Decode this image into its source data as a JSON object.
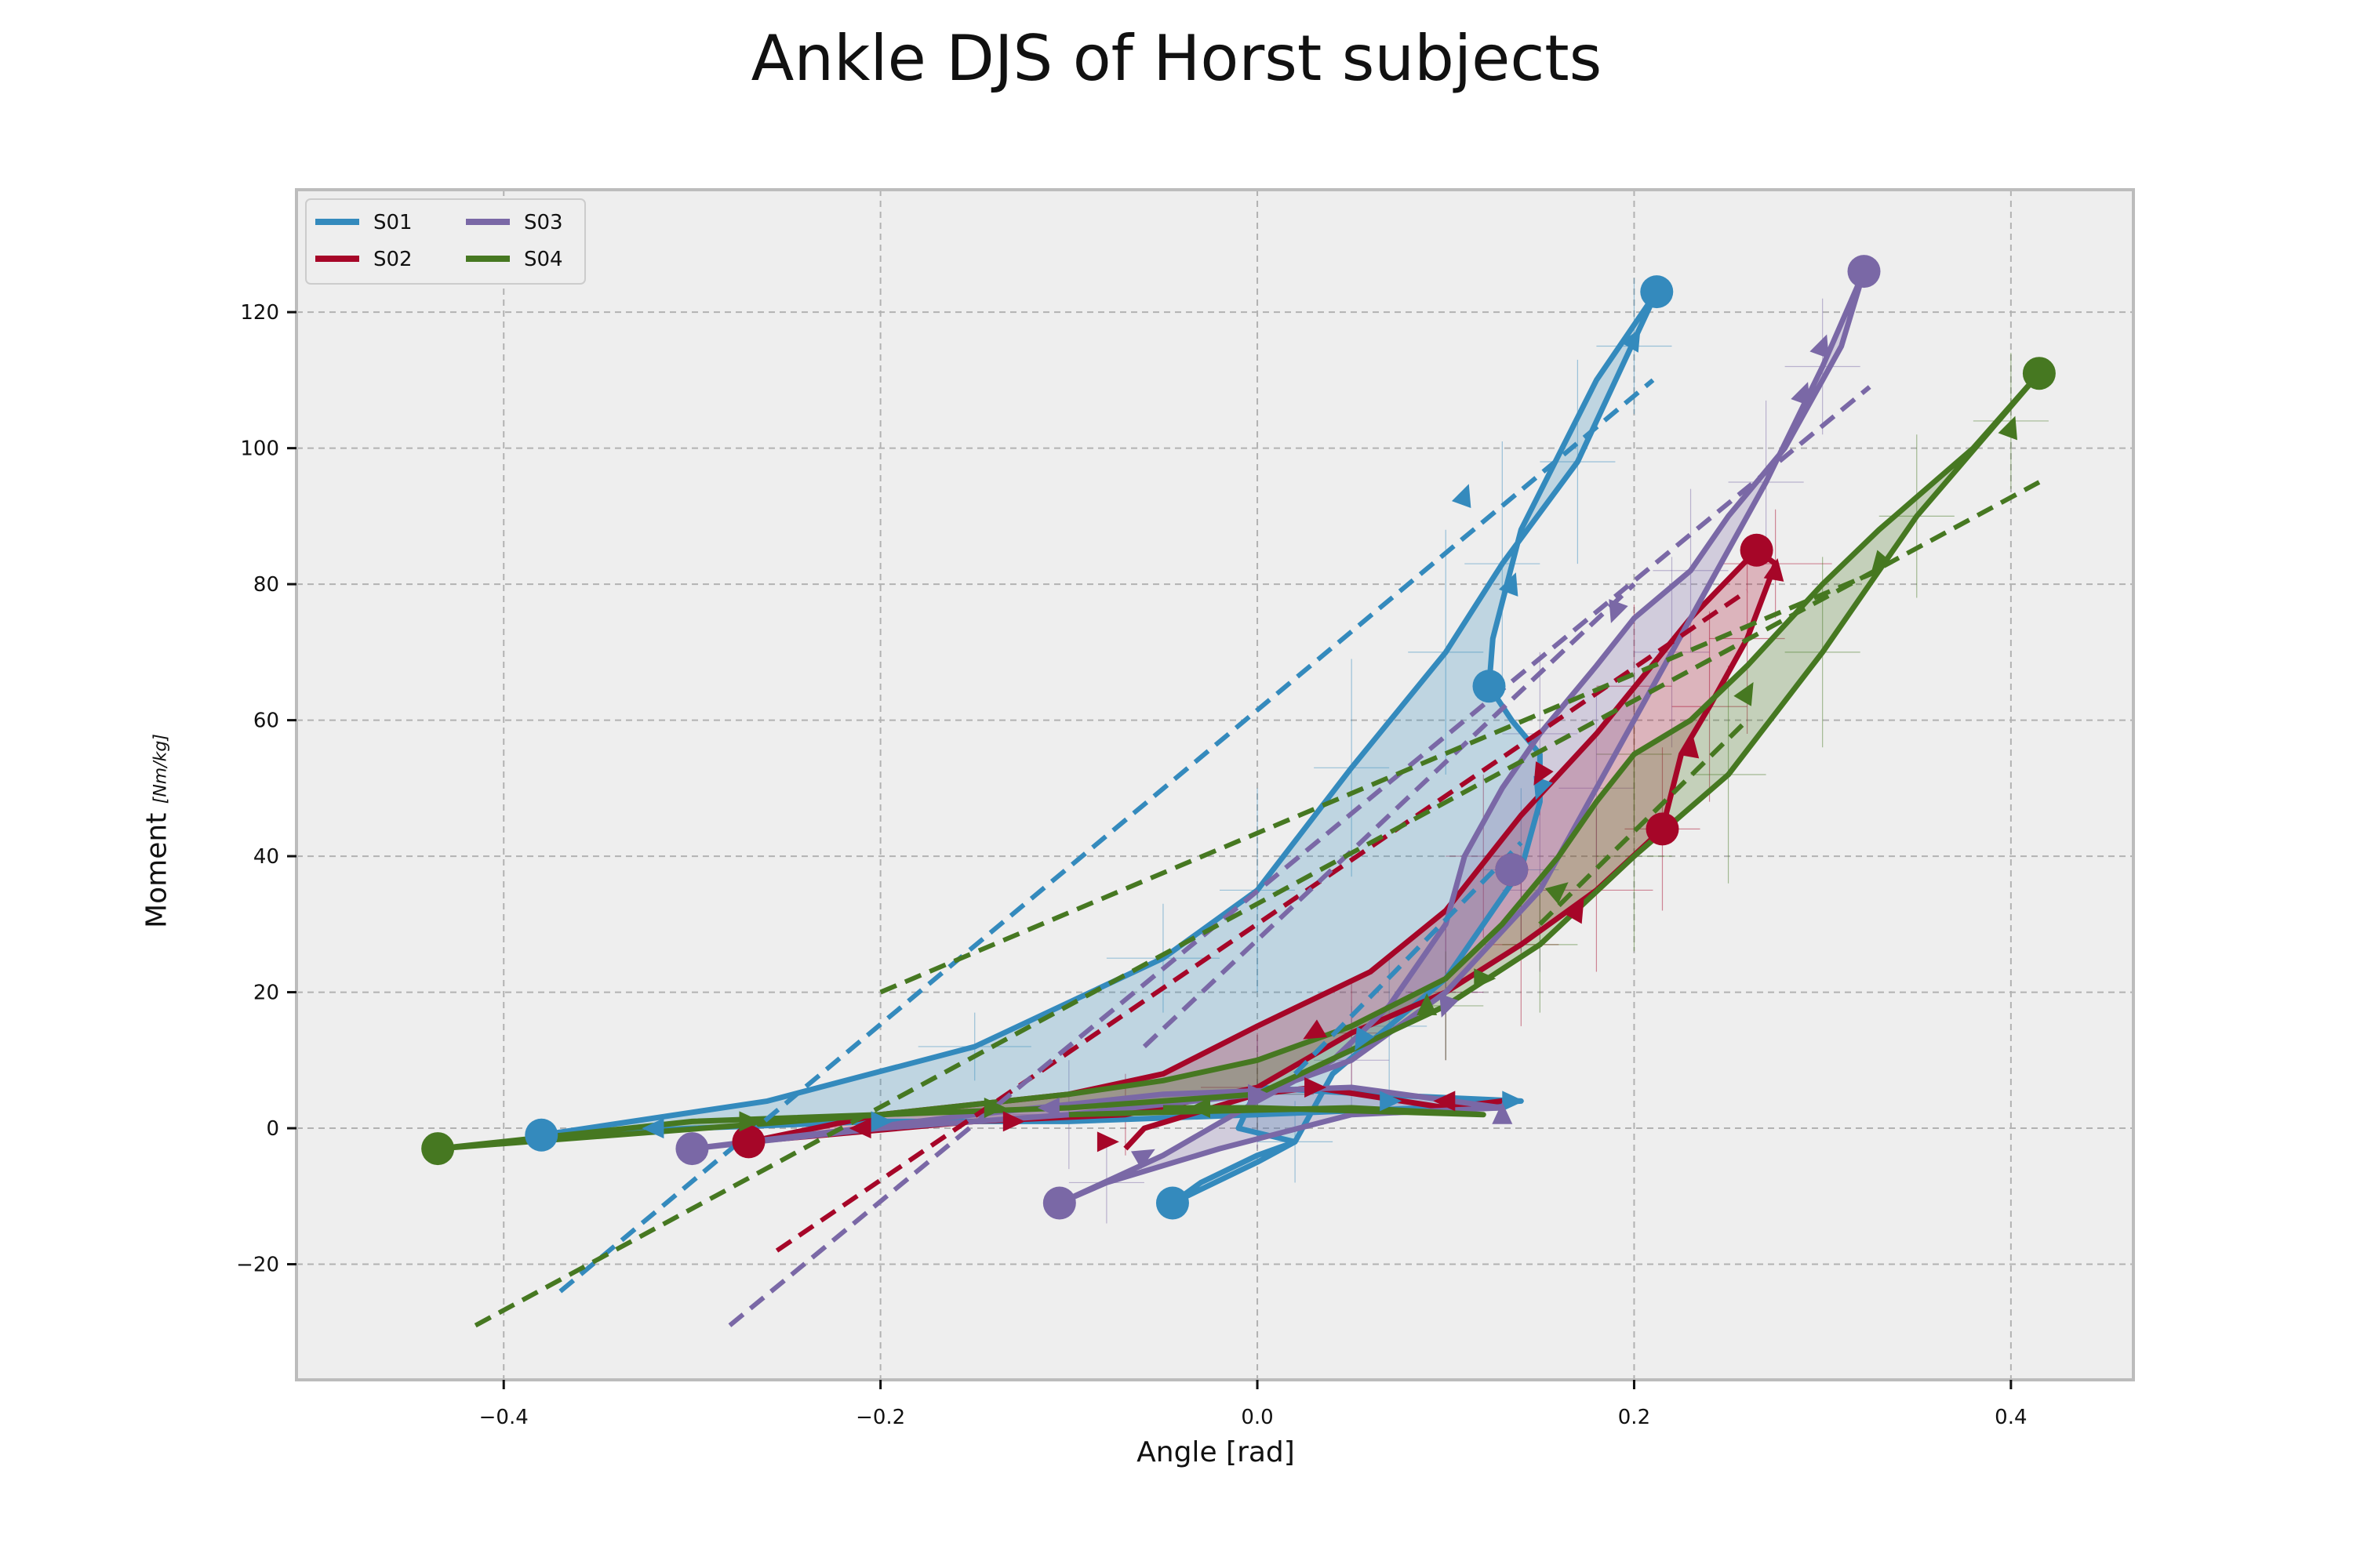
{
  "colors": {
    "S01": "#348ABD",
    "S02": "#A60628",
    "S03": "#7A68A6",
    "S04": "#467821",
    "plot_background": "#EEEEEE",
    "grid": "#B2B2B2",
    "spine": "#BCBCBC"
  },
  "chart_data": {
    "type": "line",
    "title": "Ankle DJS of Horst subjects",
    "xlabel": "Angle [rad]",
    "ylabel": "Moment",
    "ylabel_unit": "[Nm/kg]",
    "xlim": [
      -0.51,
      0.465
    ],
    "ylim": [
      -37,
      138
    ],
    "xticks": [
      -0.4,
      -0.2,
      0.0,
      0.2,
      0.4
    ],
    "xtick_labels": [
      "−0.4",
      "−0.2",
      "0.0",
      "0.2",
      "0.4"
    ],
    "yticks": [
      -20,
      0,
      20,
      40,
      60,
      80,
      100,
      120
    ],
    "ytick_labels": [
      "−20",
      "0",
      "20",
      "40",
      "60",
      "80",
      "100",
      "120"
    ],
    "grid": true,
    "grid_style": "dashed",
    "legend_position": "top-left",
    "legend_columns": 2,
    "series": [
      {
        "name": "S01",
        "color_key": "S01",
        "loop_points": [
          [
            -0.38,
            -1
          ],
          [
            -0.26,
            4
          ],
          [
            -0.15,
            12
          ],
          [
            -0.05,
            25
          ],
          [
            0.0,
            35
          ],
          [
            0.05,
            53
          ],
          [
            0.1,
            70
          ],
          [
            0.13,
            83
          ],
          [
            0.17,
            98
          ],
          [
            0.212,
            123
          ],
          [
            0.18,
            110
          ],
          [
            0.14,
            88
          ],
          [
            0.125,
            72
          ],
          [
            0.123,
            65
          ],
          [
            0.135,
            60
          ],
          [
            0.15,
            55
          ],
          [
            0.15,
            48
          ],
          [
            0.14,
            38
          ],
          [
            0.1,
            22
          ],
          [
            0.07,
            15
          ],
          [
            0.04,
            8
          ],
          [
            0.02,
            -2
          ],
          [
            0.0,
            -5
          ],
          [
            -0.045,
            -11
          ],
          [
            -0.03,
            -8
          ],
          [
            0.0,
            -4
          ],
          [
            0.02,
            -2
          ],
          [
            -0.01,
            0
          ],
          [
            0.0,
            6
          ],
          [
            0.06,
            5
          ],
          [
            0.14,
            4
          ],
          [
            0.09,
            3
          ],
          [
            0.0,
            2
          ],
          [
            -0.1,
            1
          ],
          [
            -0.2,
            1
          ],
          [
            -0.3,
            0
          ],
          [
            -0.38,
            -1
          ]
        ],
        "markers": [
          [
            -0.38,
            -1
          ],
          [
            0.212,
            123
          ],
          [
            0.123,
            65
          ],
          [
            -0.045,
            -11
          ]
        ],
        "arrows": [
          [
            0.11,
            93,
            70
          ],
          [
            0.135,
            80,
            70
          ],
          [
            0.2,
            116,
            60
          ],
          [
            0.15,
            50,
            -110
          ],
          [
            0.055,
            13,
            -120
          ],
          [
            0.07,
            4,
            0
          ],
          [
            -0.2,
            1,
            0
          ],
          [
            -0.32,
            0,
            180
          ],
          [
            0.135,
            4,
            0
          ]
        ],
        "fit_lines": [
          [
            [
              -0.37,
              -24
            ],
            [
              0.21,
              110
            ]
          ],
          [
            [
              0.02,
              8
            ],
            [
              0.14,
              42
            ]
          ]
        ],
        "errorbars": [
          [
            -0.15,
            12,
            0.03,
            5
          ],
          [
            -0.05,
            25,
            0.03,
            8
          ],
          [
            0.0,
            35,
            0.02,
            15
          ],
          [
            0.05,
            53,
            0.02,
            16
          ],
          [
            0.1,
            70,
            0.02,
            18
          ],
          [
            0.13,
            83,
            0.02,
            18
          ],
          [
            0.17,
            98,
            0.02,
            15
          ],
          [
            0.2,
            115,
            0.02,
            10
          ],
          [
            0.14,
            38,
            0.02,
            12
          ],
          [
            0.07,
            15,
            0.02,
            10
          ],
          [
            0.02,
            -2,
            0.02,
            6
          ]
        ]
      },
      {
        "name": "S02",
        "color_key": "S02",
        "loop_points": [
          [
            -0.27,
            -2
          ],
          [
            -0.15,
            1
          ],
          [
            -0.07,
            2
          ],
          [
            0.0,
            6
          ],
          [
            0.05,
            14
          ],
          [
            0.1,
            20
          ],
          [
            0.14,
            27
          ],
          [
            0.18,
            35
          ],
          [
            0.215,
            44
          ],
          [
            0.225,
            55
          ],
          [
            0.24,
            62
          ],
          [
            0.26,
            72
          ],
          [
            0.275,
            83
          ],
          [
            0.265,
            85
          ],
          [
            0.23,
            75
          ],
          [
            0.18,
            58
          ],
          [
            0.14,
            46
          ],
          [
            0.1,
            32
          ],
          [
            0.06,
            23
          ],
          [
            0.0,
            15
          ],
          [
            -0.05,
            8
          ],
          [
            -0.1,
            5
          ],
          [
            -0.2,
            2
          ],
          [
            -0.27,
            -2
          ]
        ],
        "extra_segments": [
          [
            [
              -0.07,
              -3
            ],
            [
              -0.06,
              0
            ],
            [
              0.0,
              5
            ],
            [
              0.03,
              6
            ],
            [
              0.1,
              3
            ],
            [
              0.13,
              4
            ]
          ]
        ],
        "markers": [
          [
            -0.27,
            -2
          ],
          [
            0.265,
            85
          ],
          [
            0.215,
            44
          ],
          [
            0.135,
            38
          ]
        ],
        "arrows": [
          [
            0.275,
            82,
            80
          ],
          [
            0.23,
            56,
            80
          ],
          [
            0.15,
            52,
            -120
          ],
          [
            0.03,
            14,
            -150
          ],
          [
            -0.13,
            1,
            0
          ],
          [
            0.1,
            4,
            180
          ],
          [
            -0.08,
            -2,
            0
          ],
          [
            0.03,
            6,
            0
          ],
          [
            -0.21,
            0,
            180
          ],
          [
            0.17,
            32,
            60
          ]
        ],
        "fit_lines": [
          [
            [
              -0.255,
              -18
            ],
            [
              0.26,
              79
            ]
          ]
        ],
        "errorbars": [
          [
            -0.07,
            2,
            0.03,
            6
          ],
          [
            0.0,
            6,
            0.03,
            8
          ],
          [
            0.05,
            14,
            0.02,
            8
          ],
          [
            0.1,
            20,
            0.02,
            10
          ],
          [
            0.14,
            27,
            0.02,
            12
          ],
          [
            0.18,
            35,
            0.03,
            12
          ],
          [
            0.215,
            44,
            0.02,
            12
          ],
          [
            0.24,
            62,
            0.02,
            14
          ],
          [
            0.26,
            72,
            0.02,
            14
          ],
          [
            0.275,
            83,
            0.03,
            8
          ],
          [
            0.2,
            65,
            0.02,
            12
          ],
          [
            0.12,
            40,
            0.02,
            12
          ]
        ]
      },
      {
        "name": "S03",
        "color_key": "S03",
        "loop_points": [
          [
            -0.3,
            -3
          ],
          [
            -0.2,
            0
          ],
          [
            -0.1,
            2
          ],
          [
            0.0,
            5
          ],
          [
            0.05,
            10
          ],
          [
            0.1,
            20
          ],
          [
            0.15,
            35
          ],
          [
            0.18,
            50
          ],
          [
            0.22,
            70
          ],
          [
            0.27,
            95
          ],
          [
            0.3,
            112
          ],
          [
            0.322,
            126
          ],
          [
            0.31,
            115
          ],
          [
            0.28,
            100
          ],
          [
            0.25,
            90
          ],
          [
            0.23,
            82
          ],
          [
            0.2,
            75
          ],
          [
            0.18,
            68
          ],
          [
            0.15,
            58
          ],
          [
            0.13,
            50
          ],
          [
            0.11,
            40
          ],
          [
            0.1,
            30
          ],
          [
            0.07,
            18
          ],
          [
            0.04,
            10
          ],
          [
            0.0,
            4
          ],
          [
            -0.05,
            -4
          ],
          [
            -0.105,
            -11
          ],
          [
            -0.08,
            -8
          ],
          [
            -0.02,
            -3
          ],
          [
            0.05,
            2
          ],
          [
            0.13,
            3
          ],
          [
            0.05,
            6
          ],
          [
            -0.05,
            5
          ],
          [
            -0.15,
            2
          ],
          [
            -0.3,
            -3
          ]
        ],
        "markers": [
          [
            -0.3,
            -3
          ],
          [
            0.322,
            126
          ],
          [
            -0.105,
            -11
          ],
          [
            0.135,
            38
          ]
        ],
        "arrows": [
          [
            0.3,
            115,
            70
          ],
          [
            0.29,
            108,
            70
          ],
          [
            0.19,
            76,
            -110
          ],
          [
            0.1,
            18,
            -110
          ],
          [
            0.0,
            5,
            0
          ],
          [
            -0.06,
            -4,
            30
          ],
          [
            0.13,
            2,
            90
          ],
          [
            -0.11,
            3,
            180
          ]
        ],
        "fit_lines": [
          [
            [
              -0.28,
              -29
            ],
            [
              0.325,
              109
            ]
          ],
          [
            [
              -0.06,
              12
            ],
            [
              0.2,
              80
            ]
          ]
        ],
        "errorbars": [
          [
            -0.1,
            2,
            0.03,
            8
          ],
          [
            0.0,
            5,
            0.03,
            8
          ],
          [
            0.05,
            10,
            0.02,
            8
          ],
          [
            0.1,
            20,
            0.02,
            10
          ],
          [
            0.15,
            35,
            0.02,
            12
          ],
          [
            0.18,
            50,
            0.02,
            14
          ],
          [
            0.22,
            70,
            0.02,
            14
          ],
          [
            0.27,
            95,
            0.02,
            12
          ],
          [
            0.3,
            112,
            0.02,
            10
          ],
          [
            0.23,
            82,
            0.02,
            12
          ],
          [
            0.15,
            58,
            0.02,
            12
          ],
          [
            -0.08,
            -8,
            0.02,
            6
          ]
        ]
      },
      {
        "name": "S04",
        "color_key": "S04",
        "loop_points": [
          [
            -0.435,
            -3
          ],
          [
            -0.3,
            1
          ],
          [
            -0.2,
            2
          ],
          [
            -0.1,
            3
          ],
          [
            0.0,
            5
          ],
          [
            0.1,
            18
          ],
          [
            0.15,
            27
          ],
          [
            0.2,
            40
          ],
          [
            0.25,
            52
          ],
          [
            0.3,
            70
          ],
          [
            0.35,
            90
          ],
          [
            0.415,
            111
          ],
          [
            0.38,
            100
          ],
          [
            0.33,
            88
          ],
          [
            0.3,
            80
          ],
          [
            0.26,
            68
          ],
          [
            0.23,
            60
          ],
          [
            0.2,
            55
          ],
          [
            0.18,
            48
          ],
          [
            0.16,
            40
          ],
          [
            0.13,
            30
          ],
          [
            0.1,
            22
          ],
          [
            0.05,
            15
          ],
          [
            0.0,
            10
          ],
          [
            -0.05,
            7
          ],
          [
            -0.1,
            5
          ],
          [
            -0.2,
            2
          ],
          [
            -0.435,
            -3
          ]
        ],
        "extra_segments": [
          [
            [
              -0.05,
              3
            ],
            [
              0.0,
              3
            ],
            [
              0.12,
              2
            ],
            [
              0.05,
              3
            ],
            [
              -0.1,
              2
            ]
          ]
        ],
        "markers": [
          [
            -0.435,
            -3
          ],
          [
            0.415,
            111
          ]
        ],
        "arrows": [
          [
            0.4,
            103,
            70
          ],
          [
            0.26,
            64,
            60
          ],
          [
            0.16,
            35,
            40
          ],
          [
            0.09,
            18,
            90
          ],
          [
            -0.27,
            1,
            0
          ],
          [
            -0.14,
            3,
            0
          ],
          [
            -0.03,
            3,
            180
          ],
          [
            0.33,
            83,
            -130
          ],
          [
            0.12,
            22,
            0
          ]
        ],
        "fit_lines": [
          [
            [
              -0.415,
              -29
            ],
            [
              0.415,
              95
            ]
          ],
          [
            [
              -0.2,
              20
            ],
            [
              0.33,
              82
            ]
          ],
          [
            [
              0.15,
              30
            ],
            [
              0.26,
              60
            ]
          ]
        ],
        "errorbars": [
          [
            0.0,
            5,
            0.03,
            6
          ],
          [
            0.1,
            18,
            0.02,
            8
          ],
          [
            0.15,
            27,
            0.02,
            10
          ],
          [
            0.2,
            40,
            0.02,
            14
          ],
          [
            0.25,
            52,
            0.02,
            16
          ],
          [
            0.3,
            70,
            0.02,
            14
          ],
          [
            0.35,
            90,
            0.02,
            12
          ],
          [
            0.4,
            104,
            0.02,
            10
          ],
          [
            0.2,
            55,
            0.02,
            12
          ]
        ]
      }
    ]
  }
}
